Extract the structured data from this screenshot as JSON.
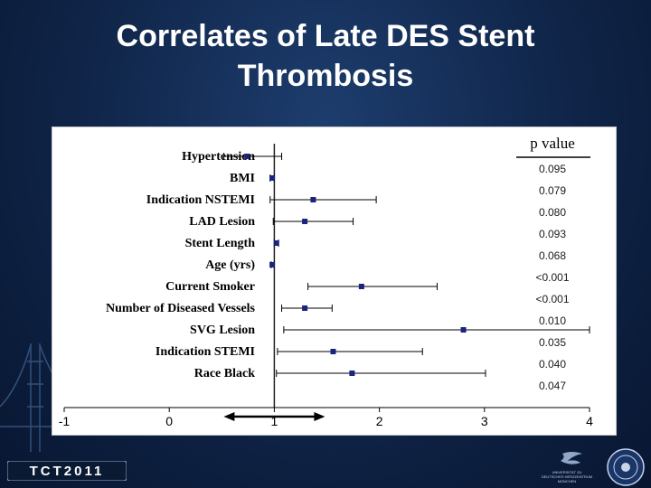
{
  "slide": {
    "title_line1": "Correlates of Late DES Stent",
    "title_line2": "Thrombosis"
  },
  "chart_data": {
    "type": "forest",
    "pvalue_header": "p value",
    "xlim": [
      -1,
      4
    ],
    "xticks": [
      "-1",
      "0",
      "1",
      "2",
      "3",
      "4"
    ],
    "reference_line": 1,
    "rows": [
      {
        "label": "Hypertension",
        "estimate": 0.74,
        "ci": [
          0.52,
          1.07
        ],
        "p": null
      },
      {
        "label": "BMI",
        "estimate": 0.98,
        "ci": [
          0.96,
          1.0
        ],
        "p": "0.095"
      },
      {
        "label": "Indication  NSTEMI",
        "estimate": 1.37,
        "ci": [
          0.96,
          1.97
        ],
        "p": "0.079"
      },
      {
        "label": "LAD Lesion",
        "estimate": 1.29,
        "ci": [
          0.99,
          1.75
        ],
        "p": "0.080"
      },
      {
        "label": "Stent Length",
        "estimate": 1.02,
        "ci": [
          1.0,
          1.04
        ],
        "p": "0.093"
      },
      {
        "label": "Age (yrs)",
        "estimate": 0.98,
        "ci": [
          0.97,
          1.0
        ],
        "p": "0.068"
      },
      {
        "label": "Current Smoker",
        "estimate": 1.83,
        "ci": [
          1.32,
          2.55
        ],
        "p": "<0.001"
      },
      {
        "label": "Number of Diseased Vessels",
        "estimate": 1.29,
        "ci": [
          1.07,
          1.55
        ],
        "p": "<0.001"
      },
      {
        "label": "SVG Lesion",
        "estimate": 2.8,
        "ci": [
          1.09,
          4.0
        ],
        "p": "0.010"
      },
      {
        "label": "Indication STEMI",
        "estimate": 1.56,
        "ci": [
          1.03,
          2.41
        ],
        "p": "0.035"
      },
      {
        "label": "Race Black",
        "estimate": 1.74,
        "ci": [
          1.02,
          3.01
        ],
        "p": "0.040"
      }
    ],
    "extra_p": [
      "0.047"
    ],
    "colors": {
      "marker": "#1a237e",
      "line": "#000000",
      "pvalue_text": "#1a1a1a"
    }
  },
  "footer": {
    "logo_text": "TCT2011",
    "sponsor_lines": [
      "UNIVERSITÄT ZU",
      "DEUTSCHES HERZZENTRUM",
      "MÜNCHEN"
    ]
  }
}
